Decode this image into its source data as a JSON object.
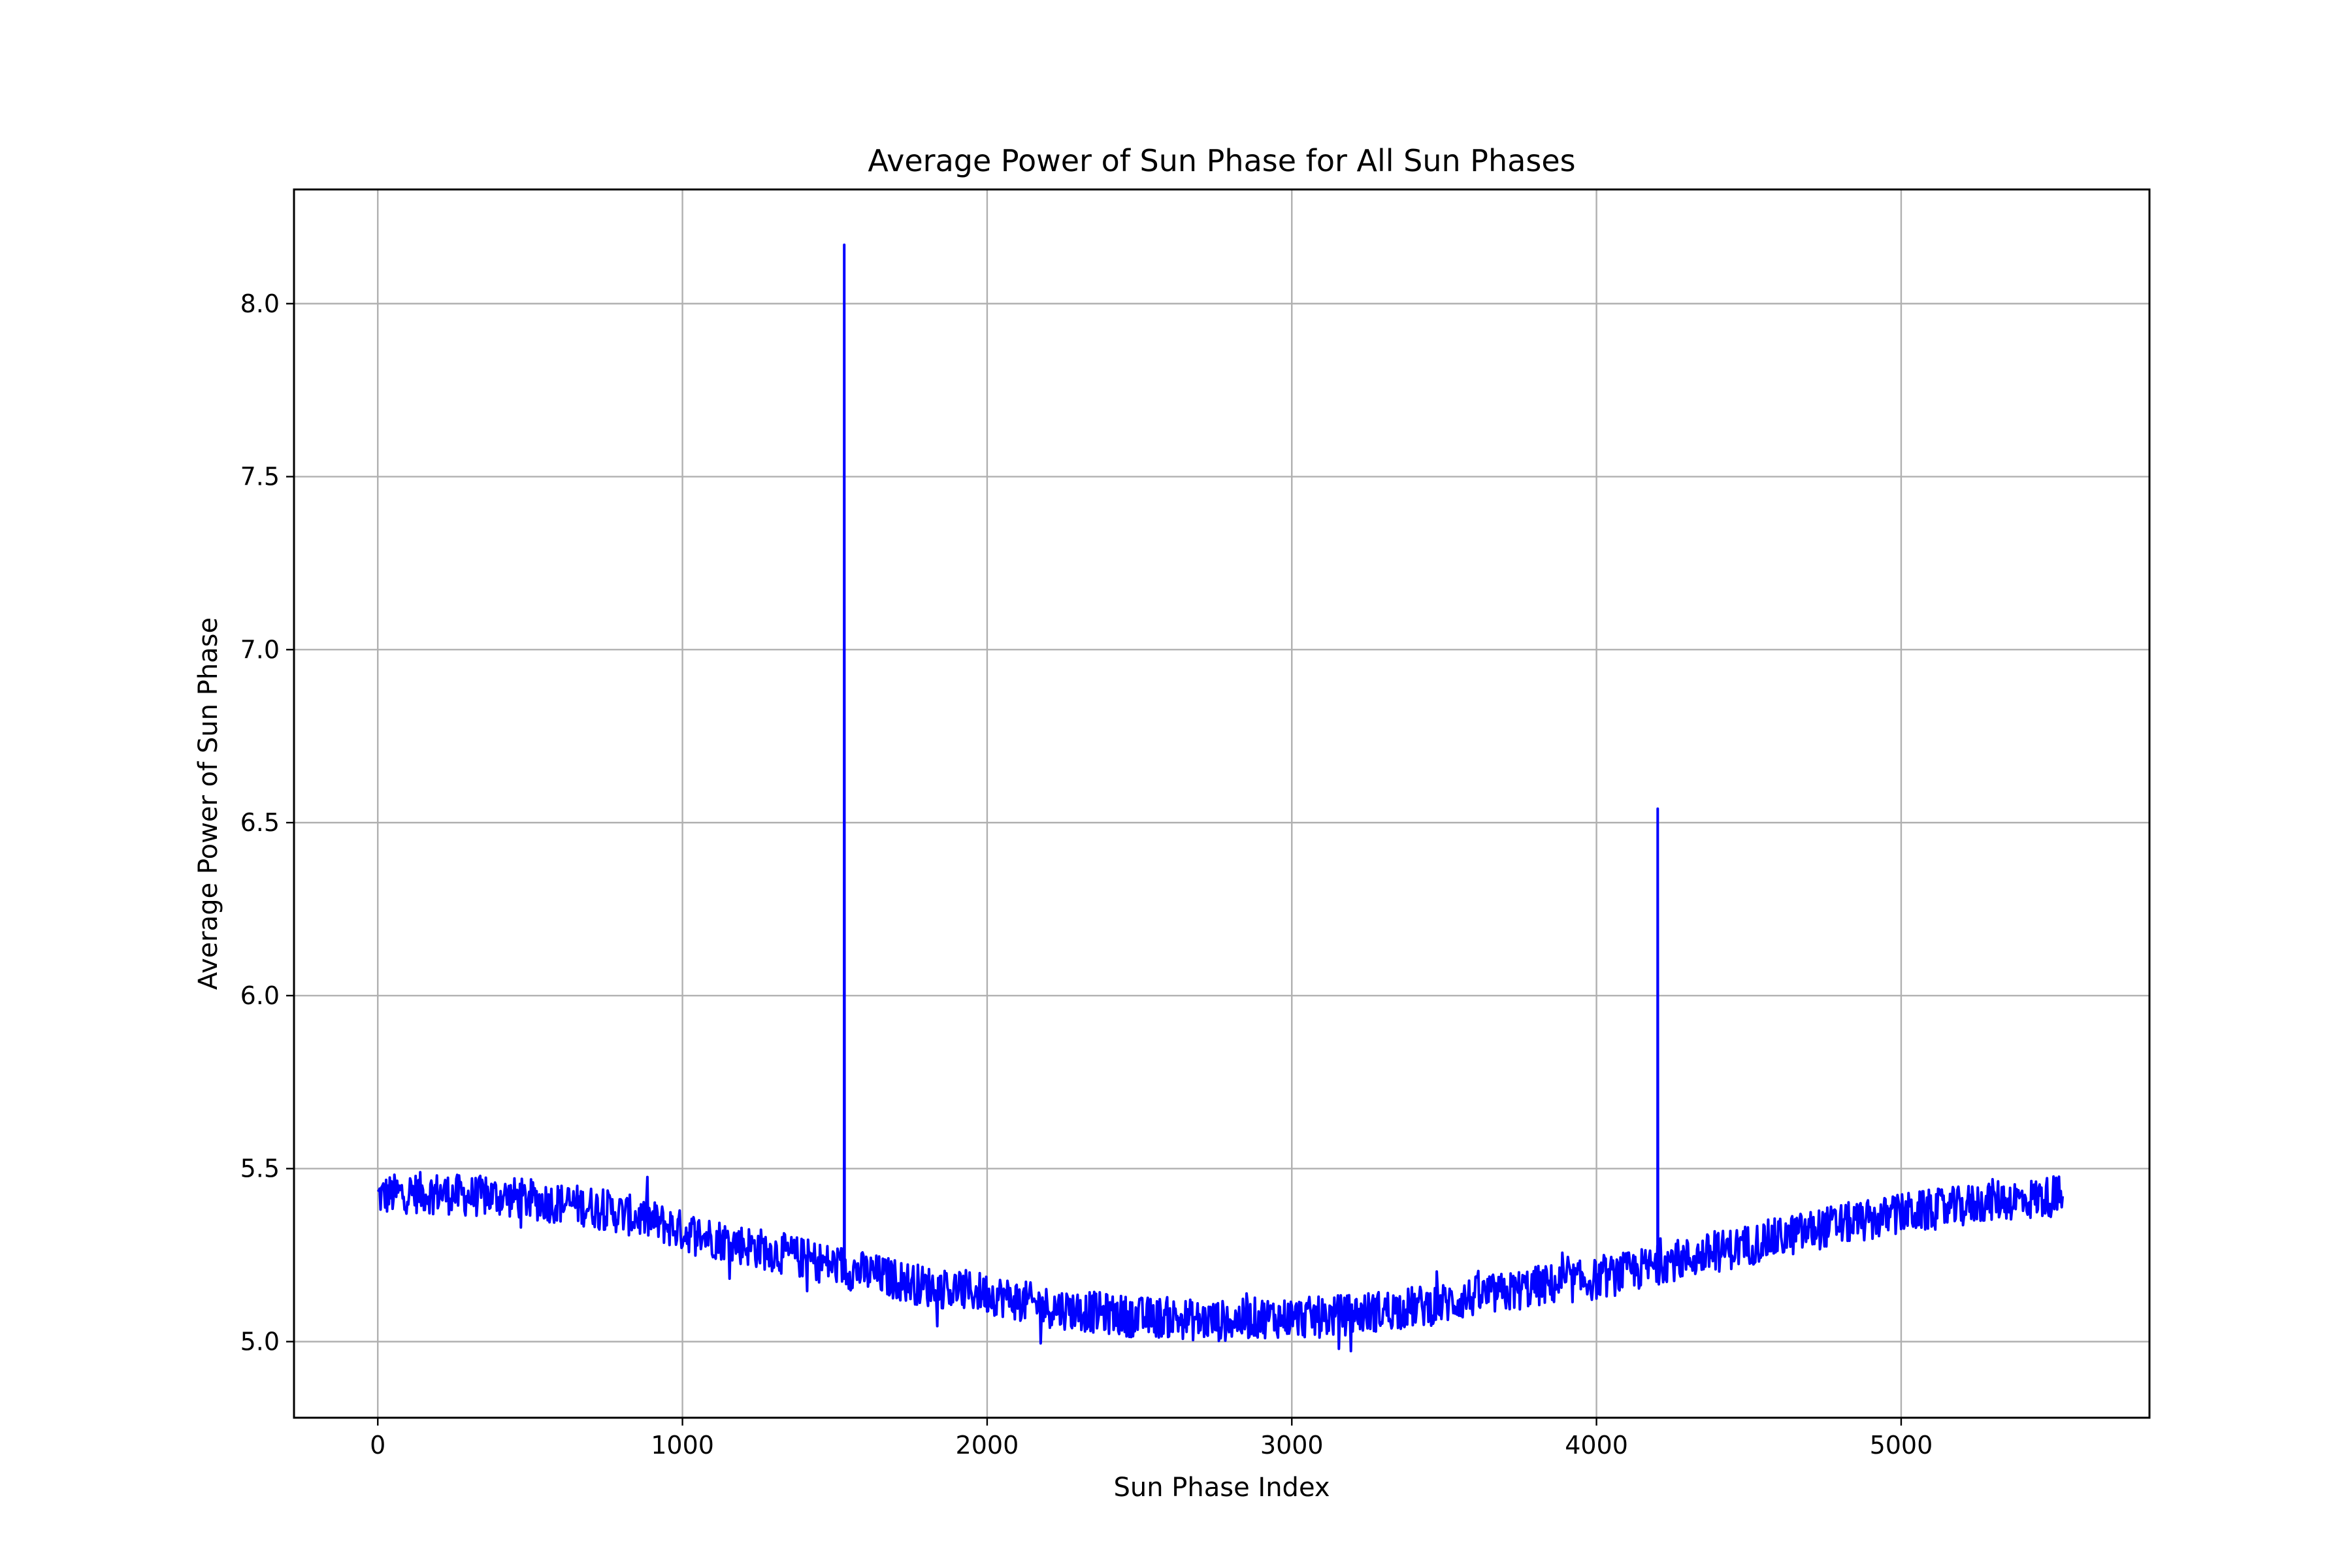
{
  "chart_data": {
    "type": "line",
    "title": "Average Power of Sun Phase for All Sun Phases",
    "xlabel": "Sun Phase Index",
    "ylabel": "Average Power of Sun Phase",
    "xlim": [
      -275,
      5815
    ],
    "ylim": [
      4.78,
      8.33
    ],
    "xticks": [
      0,
      1000,
      2000,
      3000,
      4000,
      5000
    ],
    "yticks": [
      5.0,
      5.5,
      6.0,
      6.5,
      7.0,
      7.5,
      8.0
    ],
    "xtick_labels": [
      "0",
      "1000",
      "2000",
      "3000",
      "4000",
      "5000"
    ],
    "ytick_labels": [
      "5.0",
      "5.5",
      "6.0",
      "6.5",
      "7.0",
      "7.5",
      "8.0"
    ],
    "grid": true,
    "line_color": "#0000ff",
    "series": [
      {
        "x": [
          0,
          100,
          200,
          300,
          400,
          500,
          600,
          700,
          800,
          900,
          1000,
          1100,
          1200,
          1300,
          1400,
          1500,
          1530,
          1531,
          1532,
          1540,
          1600,
          1700,
          1800,
          1900,
          2000,
          2100,
          2200,
          2300,
          2400,
          2500,
          2600,
          2700,
          2800,
          2900,
          3000,
          3100,
          3200,
          3300,
          3400,
          3500,
          3600,
          3700,
          3800,
          3900,
          4000,
          4100,
          4200,
          4201,
          4202,
          4210,
          4300,
          4400,
          4500,
          4600,
          4700,
          4800,
          4900,
          5000,
          5100,
          5200,
          5300,
          5400,
          5500,
          5530
        ],
        "y": [
          5.42,
          5.43,
          5.43,
          5.42,
          5.42,
          5.41,
          5.4,
          5.39,
          5.37,
          5.35,
          5.32,
          5.3,
          5.28,
          5.26,
          5.24,
          5.22,
          5.22,
          8.17,
          5.22,
          5.21,
          5.2,
          5.18,
          5.16,
          5.15,
          5.14,
          5.12,
          5.1,
          5.09,
          5.08,
          5.07,
          5.07,
          5.06,
          5.06,
          5.07,
          5.07,
          5.07,
          5.08,
          5.09,
          5.1,
          5.11,
          5.13,
          5.14,
          5.16,
          5.17,
          5.18,
          5.2,
          5.22,
          6.54,
          5.22,
          5.23,
          5.24,
          5.26,
          5.28,
          5.3,
          5.32,
          5.34,
          5.35,
          5.37,
          5.38,
          5.39,
          5.41,
          5.41,
          5.42,
          5.42
        ]
      }
    ],
    "noise_amplitude": 0.06
  }
}
